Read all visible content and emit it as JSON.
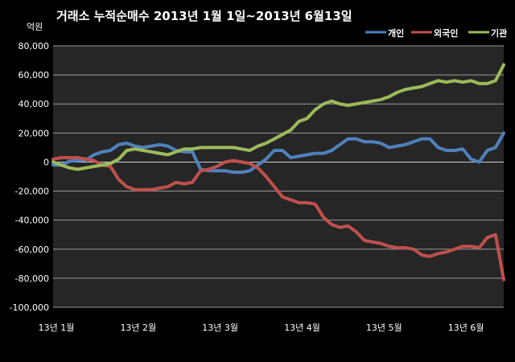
{
  "chart_data": {
    "type": "line",
    "title": "거래소  누적순매수 2013년 1월 1일~2013년 6월13일",
    "unit": "억원",
    "ylim": [
      -100000,
      80000
    ],
    "y_ticks": [
      80000,
      60000,
      40000,
      20000,
      0,
      -20000,
      -40000,
      -60000,
      -80000,
      -100000
    ],
    "y_tick_labels": [
      "80,000",
      "60,000",
      "40,000",
      "20,000",
      "0",
      "-20,000",
      "-40,000",
      "-60,000",
      "-80,000",
      "-100,000"
    ],
    "x_tick_labels": [
      "13년 1월",
      "13년 2월",
      "13년 3월",
      "13년 4월",
      "13년 5월",
      "13년 6월"
    ],
    "x_tick_positions": [
      0,
      20,
      40,
      60,
      80,
      100
    ],
    "x_range": [
      0,
      110
    ],
    "grid": "horizontal",
    "legend_position": "top-right",
    "series": [
      {
        "name": "개인",
        "color": "#4f81bd",
        "x": [
          0,
          2,
          4,
          6,
          8,
          10,
          12,
          14,
          16,
          18,
          20,
          22,
          24,
          26,
          28,
          30,
          32,
          34,
          36,
          38,
          40,
          42,
          44,
          46,
          48,
          50,
          52,
          54,
          56,
          58,
          60,
          62,
          64,
          66,
          68,
          70,
          72,
          74,
          76,
          78,
          80,
          82,
          84,
          86,
          88,
          90,
          92,
          94,
          96,
          98,
          100,
          102,
          104,
          106,
          108,
          110
        ],
        "values": [
          -2000,
          -2000,
          500,
          1000,
          1500,
          5000,
          7000,
          8000,
          12000,
          13000,
          11000,
          10000,
          11000,
          12000,
          11000,
          8000,
          7000,
          7000,
          -5000,
          -6000,
          -6000,
          -6000,
          -7000,
          -7000,
          -6000,
          -2000,
          2000,
          8000,
          8000,
          3000,
          4000,
          5000,
          6000,
          6000,
          8000,
          12000,
          16000,
          16000,
          14000,
          14000,
          13000,
          10000,
          11000,
          12000,
          14000,
          16000,
          16000,
          10000,
          8000,
          8000,
          9000,
          2000,
          0,
          8000,
          10000,
          20000
        ]
      },
      {
        "name": "외국인",
        "color": "#c0504d",
        "x": [
          0,
          2,
          4,
          6,
          8,
          10,
          12,
          14,
          16,
          18,
          20,
          22,
          24,
          26,
          28,
          30,
          32,
          34,
          36,
          38,
          40,
          42,
          44,
          46,
          48,
          50,
          52,
          54,
          56,
          58,
          60,
          62,
          64,
          66,
          68,
          70,
          72,
          74,
          76,
          78,
          80,
          82,
          84,
          86,
          88,
          90,
          92,
          94,
          96,
          98,
          100,
          102,
          104,
          106,
          108,
          110
        ],
        "values": [
          2000,
          3000,
          3000,
          3000,
          2000,
          1000,
          -2000,
          -3000,
          -12000,
          -17000,
          -19000,
          -19000,
          -19000,
          -18000,
          -17000,
          -14000,
          -15000,
          -14000,
          -6000,
          -5000,
          -3000,
          0,
          1000,
          0,
          -1000,
          -4000,
          -10000,
          -17000,
          -24000,
          -26000,
          -28000,
          -28000,
          -29000,
          -38000,
          -43000,
          -45000,
          -44000,
          -48000,
          -54000,
          -55000,
          -56000,
          -58000,
          -59000,
          -59000,
          -60000,
          -64000,
          -65000,
          -63000,
          -62000,
          -60000,
          -58000,
          -58000,
          -59000,
          -52000,
          -50000,
          -81000
        ]
      },
      {
        "name": "기관",
        "color": "#9bbb59",
        "x": [
          0,
          2,
          4,
          6,
          8,
          10,
          12,
          14,
          16,
          18,
          20,
          22,
          24,
          26,
          28,
          30,
          32,
          34,
          36,
          38,
          40,
          42,
          44,
          46,
          48,
          50,
          52,
          54,
          56,
          58,
          60,
          62,
          64,
          66,
          68,
          70,
          72,
          74,
          76,
          78,
          80,
          82,
          84,
          86,
          88,
          90,
          92,
          94,
          96,
          98,
          100,
          102,
          104,
          106,
          108,
          110
        ],
        "values": [
          0,
          -2000,
          -4000,
          -5000,
          -4000,
          -3000,
          -2000,
          -1000,
          2000,
          8000,
          9000,
          8000,
          7000,
          6000,
          5000,
          7000,
          9000,
          9000,
          10000,
          10000,
          10000,
          10000,
          10000,
          9000,
          8000,
          11000,
          13000,
          16000,
          19000,
          22000,
          28000,
          30000,
          36000,
          40000,
          42000,
          40000,
          39000,
          40000,
          41000,
          42000,
          43000,
          45000,
          48000,
          50000,
          51000,
          52000,
          54000,
          56000,
          55000,
          56000,
          55000,
          56000,
          54000,
          54000,
          56000,
          67000
        ]
      }
    ]
  }
}
